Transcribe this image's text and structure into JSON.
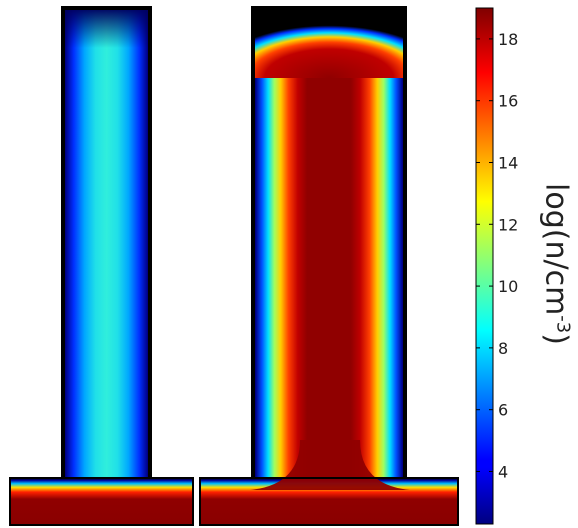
{
  "figure": {
    "panels": [
      {
        "name": "left-structure-density"
      },
      {
        "name": "right-structure-density"
      }
    ]
  },
  "colorbar": {
    "colormap": "jet",
    "min": 2.3,
    "max": 19,
    "ticks": [
      "4",
      "6",
      "8",
      "10",
      "12",
      "14",
      "16",
      "18"
    ],
    "tick_values": [
      4,
      6,
      8,
      10,
      12,
      14,
      16,
      18
    ],
    "label_main": "log(n/cm",
    "label_sup": "-3",
    "label_end": ")"
  },
  "colors": {
    "background": "#ffffff",
    "outline": "#000000"
  }
}
